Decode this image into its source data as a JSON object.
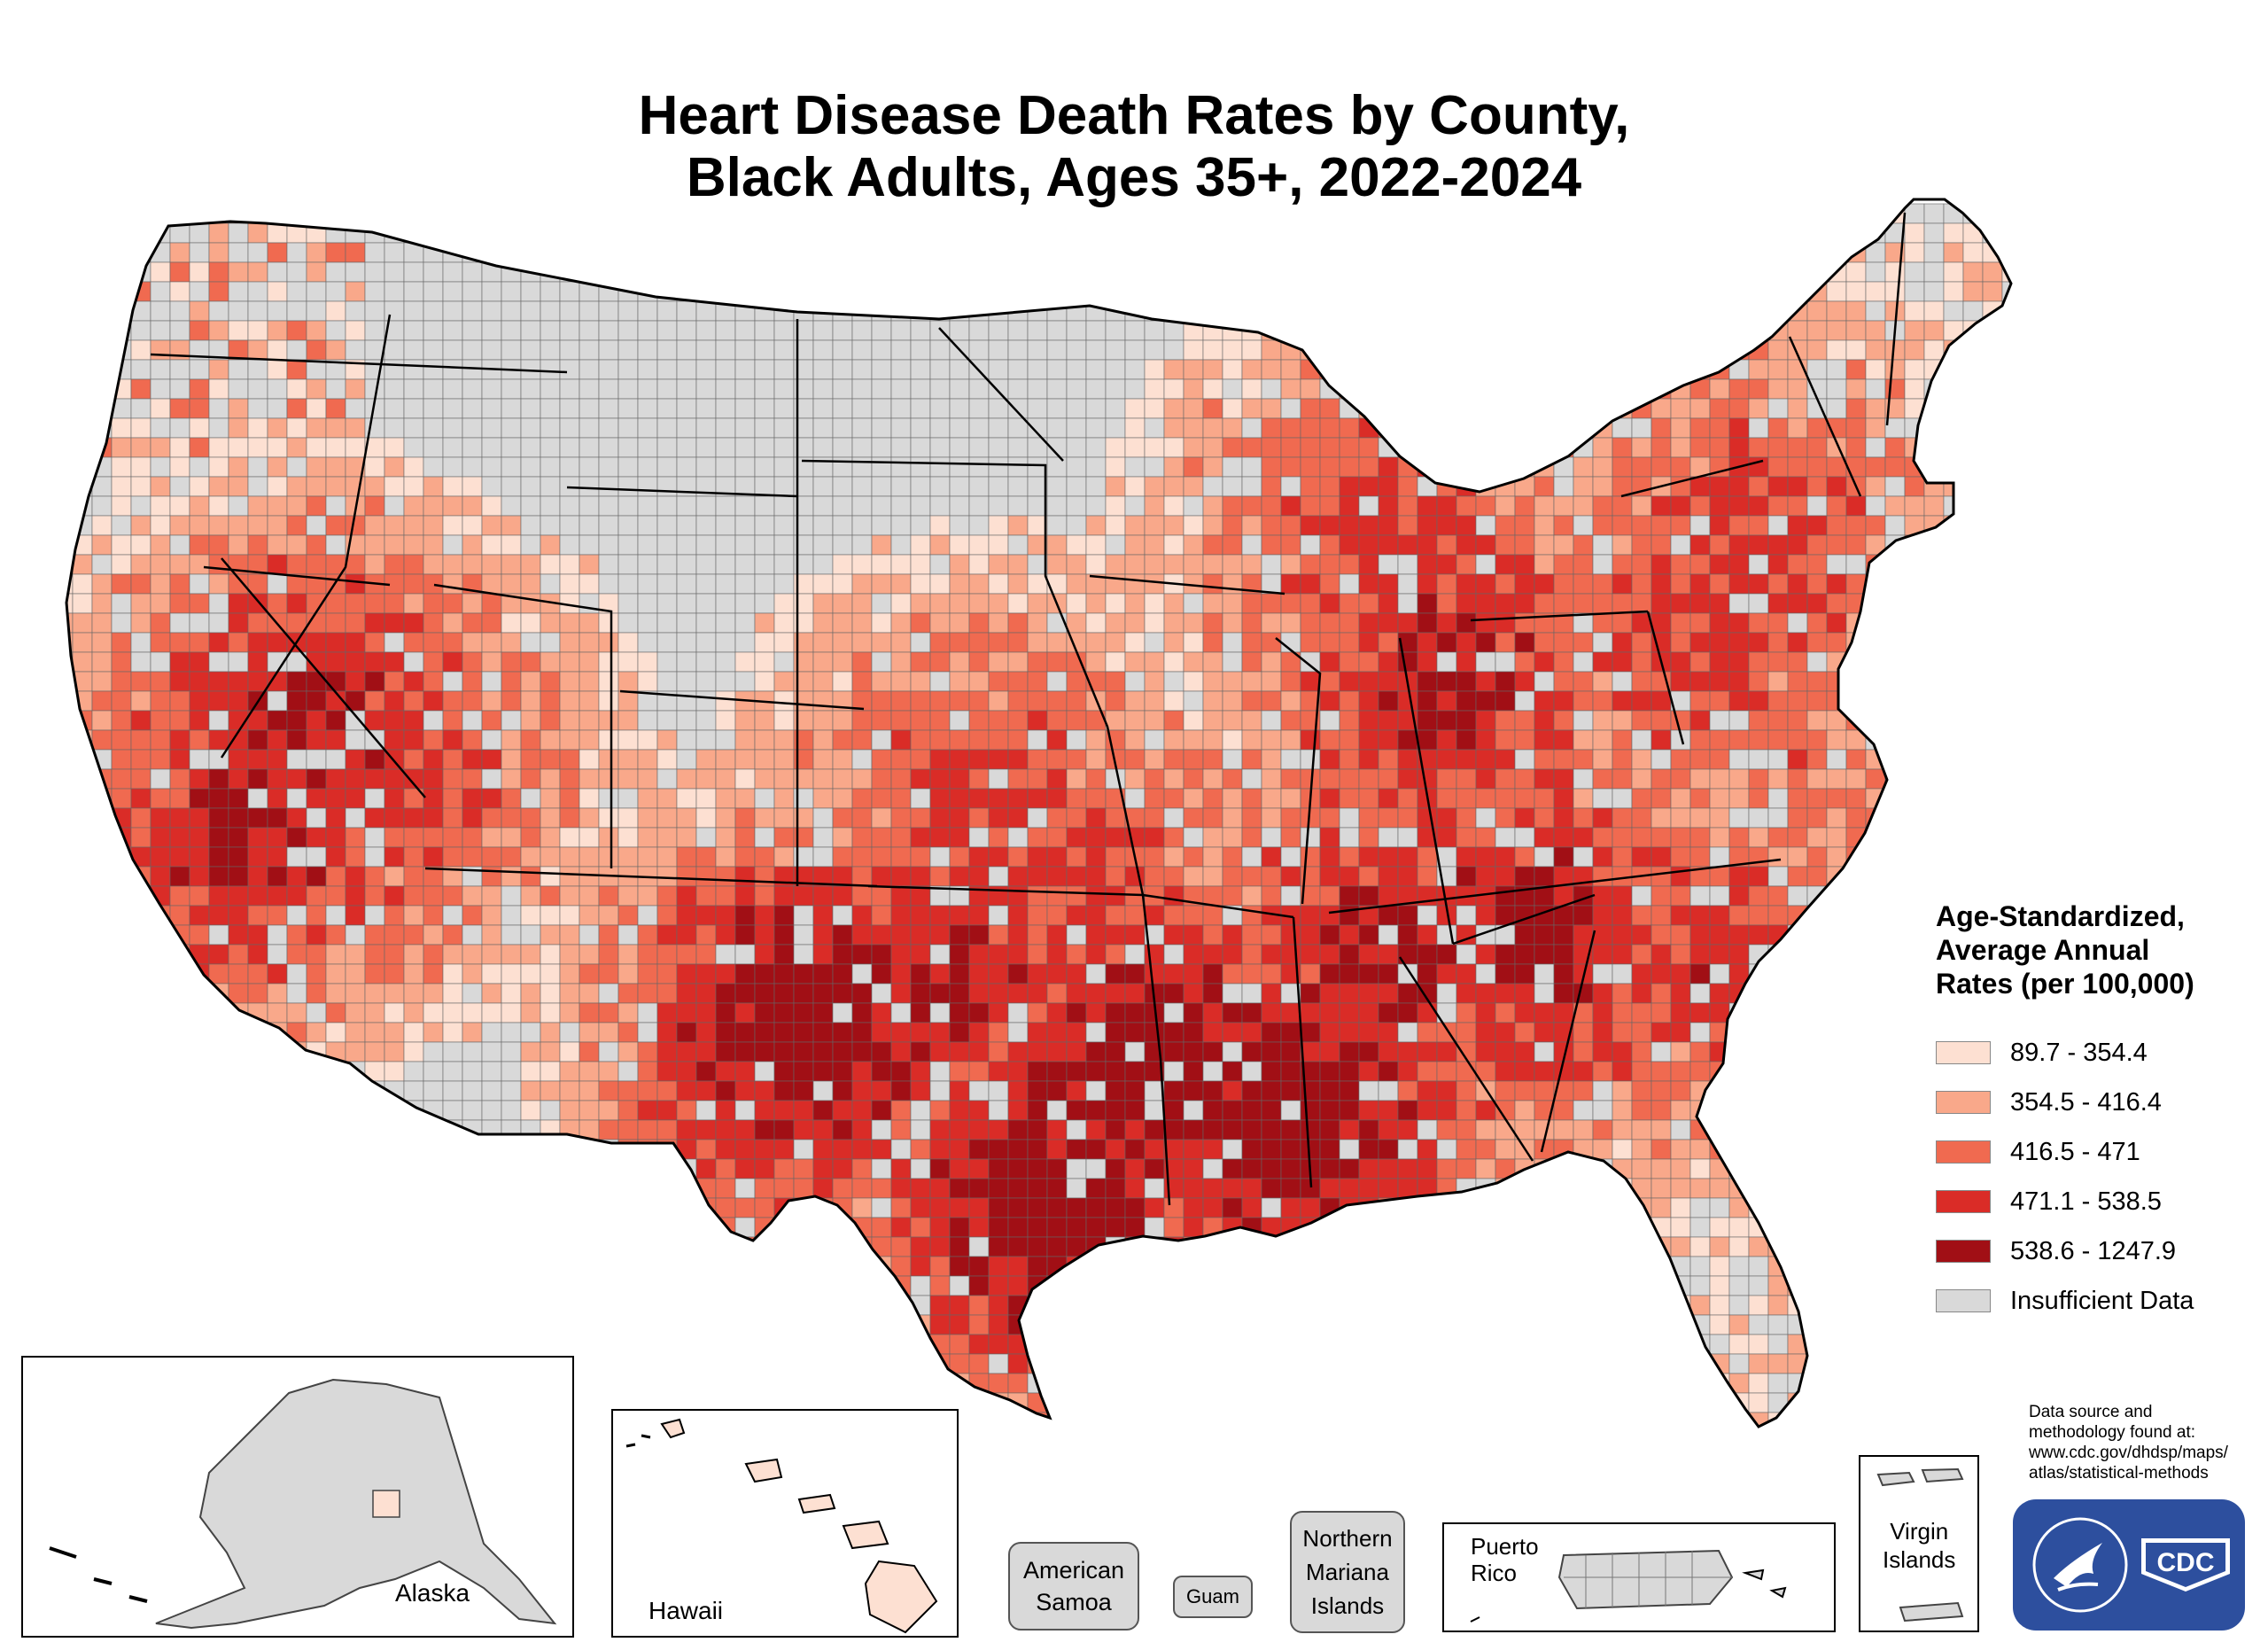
{
  "title": {
    "line1": "Heart Disease Death Rates by County,",
    "line2": "Black Adults, Ages 35+, 2022-2024"
  },
  "legend": {
    "title_lines": [
      "Age-Standardized,",
      "Average Annual",
      "Rates (per 100,000)"
    ],
    "items": [
      {
        "label": "89.7 - 354.4",
        "color": "#fde0d2"
      },
      {
        "label": "354.5 - 416.4",
        "color": "#f9a88a"
      },
      {
        "label": "416.5 - 471",
        "color": "#f06a50"
      },
      {
        "label": "471.1 - 538.5",
        "color": "#da2c27"
      },
      {
        "label": "538.6 - 1247.9",
        "color": "#a10f15"
      },
      {
        "label": "Insufficient Data",
        "color": "#d9d9d9"
      }
    ]
  },
  "insets": {
    "alaska": "Alaska",
    "hawaii": "Hawaii",
    "american_samoa": [
      "American",
      "Samoa"
    ],
    "guam": "Guam",
    "northern_mariana": [
      "Northern",
      "Mariana",
      "Islands"
    ],
    "puerto_rico": [
      "Puerto",
      "Rico"
    ],
    "virgin_islands": [
      "Virgin",
      "Islands"
    ]
  },
  "source": {
    "lines": [
      "Data source and",
      "methodology found at:",
      "www.cdc.gov/dhdsp/maps/",
      "atlas/statistical-methods"
    ]
  },
  "logo": {
    "text": "CDC"
  }
}
